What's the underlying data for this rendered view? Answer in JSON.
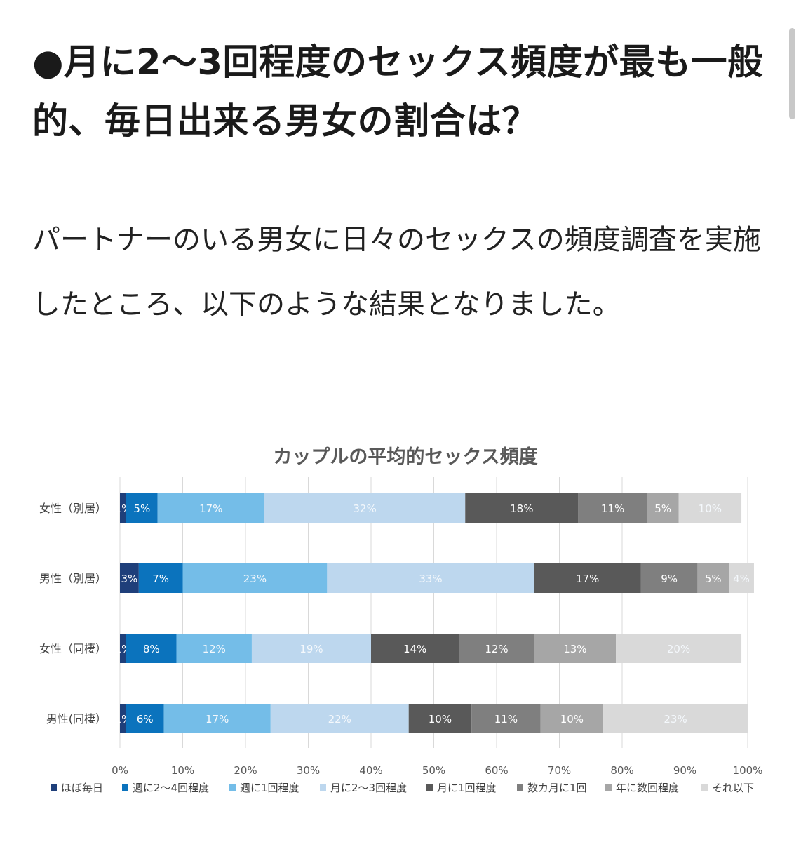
{
  "heading": "●月に2〜3回程度のセックス頻度が最も一般的、毎日出来る男女の割合は？",
  "intro": "パートナーのいる男女に日々のセックスの頻度調査を実施したところ、以下のような結果となりました。",
  "chart_data": {
    "type": "bar",
    "orientation": "horizontal",
    "stacked": true,
    "title": "カップルの平均的セックス頻度",
    "categories": [
      "女性（別居）",
      "男性（別居）",
      "女性（同棲）",
      "男性(同棲）"
    ],
    "series": [
      {
        "name": "ほぼ毎日",
        "color": "#1f3f7a",
        "values": [
          1,
          3,
          1,
          1
        ],
        "labels": [
          "1%",
          "3%",
          "1%",
          "1%"
        ]
      },
      {
        "name": "週に2〜4回程度",
        "color": "#0b73bd",
        "values": [
          5,
          7,
          8,
          6
        ],
        "labels": [
          "5%",
          "7%",
          "8%",
          "6%"
        ]
      },
      {
        "name": "週に1回程度",
        "color": "#74bde8",
        "values": [
          17,
          23,
          12,
          17
        ],
        "labels": [
          "17%",
          "23%",
          "12%",
          "17%"
        ]
      },
      {
        "name": "月に2〜3回程度",
        "color": "#bdd7ee",
        "values": [
          32,
          33,
          19,
          22
        ],
        "labels": [
          "32%",
          "33%",
          "19%",
          "22%"
        ]
      },
      {
        "name": "月に1回程度",
        "color": "#595959",
        "values": [
          18,
          17,
          14,
          10
        ],
        "labels": [
          "18%",
          "17%",
          "14%",
          "10%"
        ]
      },
      {
        "name": "数カ月に1回",
        "color": "#7f7f7f",
        "values": [
          11,
          9,
          12,
          11
        ],
        "labels": [
          "11%",
          "9%",
          "12%",
          "11%"
        ]
      },
      {
        "name": "年に数回程度",
        "color": "#a6a6a6",
        "values": [
          5,
          5,
          13,
          10
        ],
        "labels": [
          "5%",
          "5%",
          "13%",
          "10%"
        ]
      },
      {
        "name": "それ以下",
        "color": "#d9d9d9",
        "values": [
          10,
          4,
          20,
          23
        ],
        "labels": [
          "10%",
          "4%",
          "20%",
          "23%"
        ]
      }
    ],
    "x_ticks": [
      "0%",
      "10%",
      "20%",
      "30%",
      "40%",
      "50%",
      "60%",
      "70%",
      "80%",
      "90%",
      "100%"
    ],
    "xlim": [
      0,
      100
    ],
    "grid": true,
    "legend_position": "bottom"
  }
}
